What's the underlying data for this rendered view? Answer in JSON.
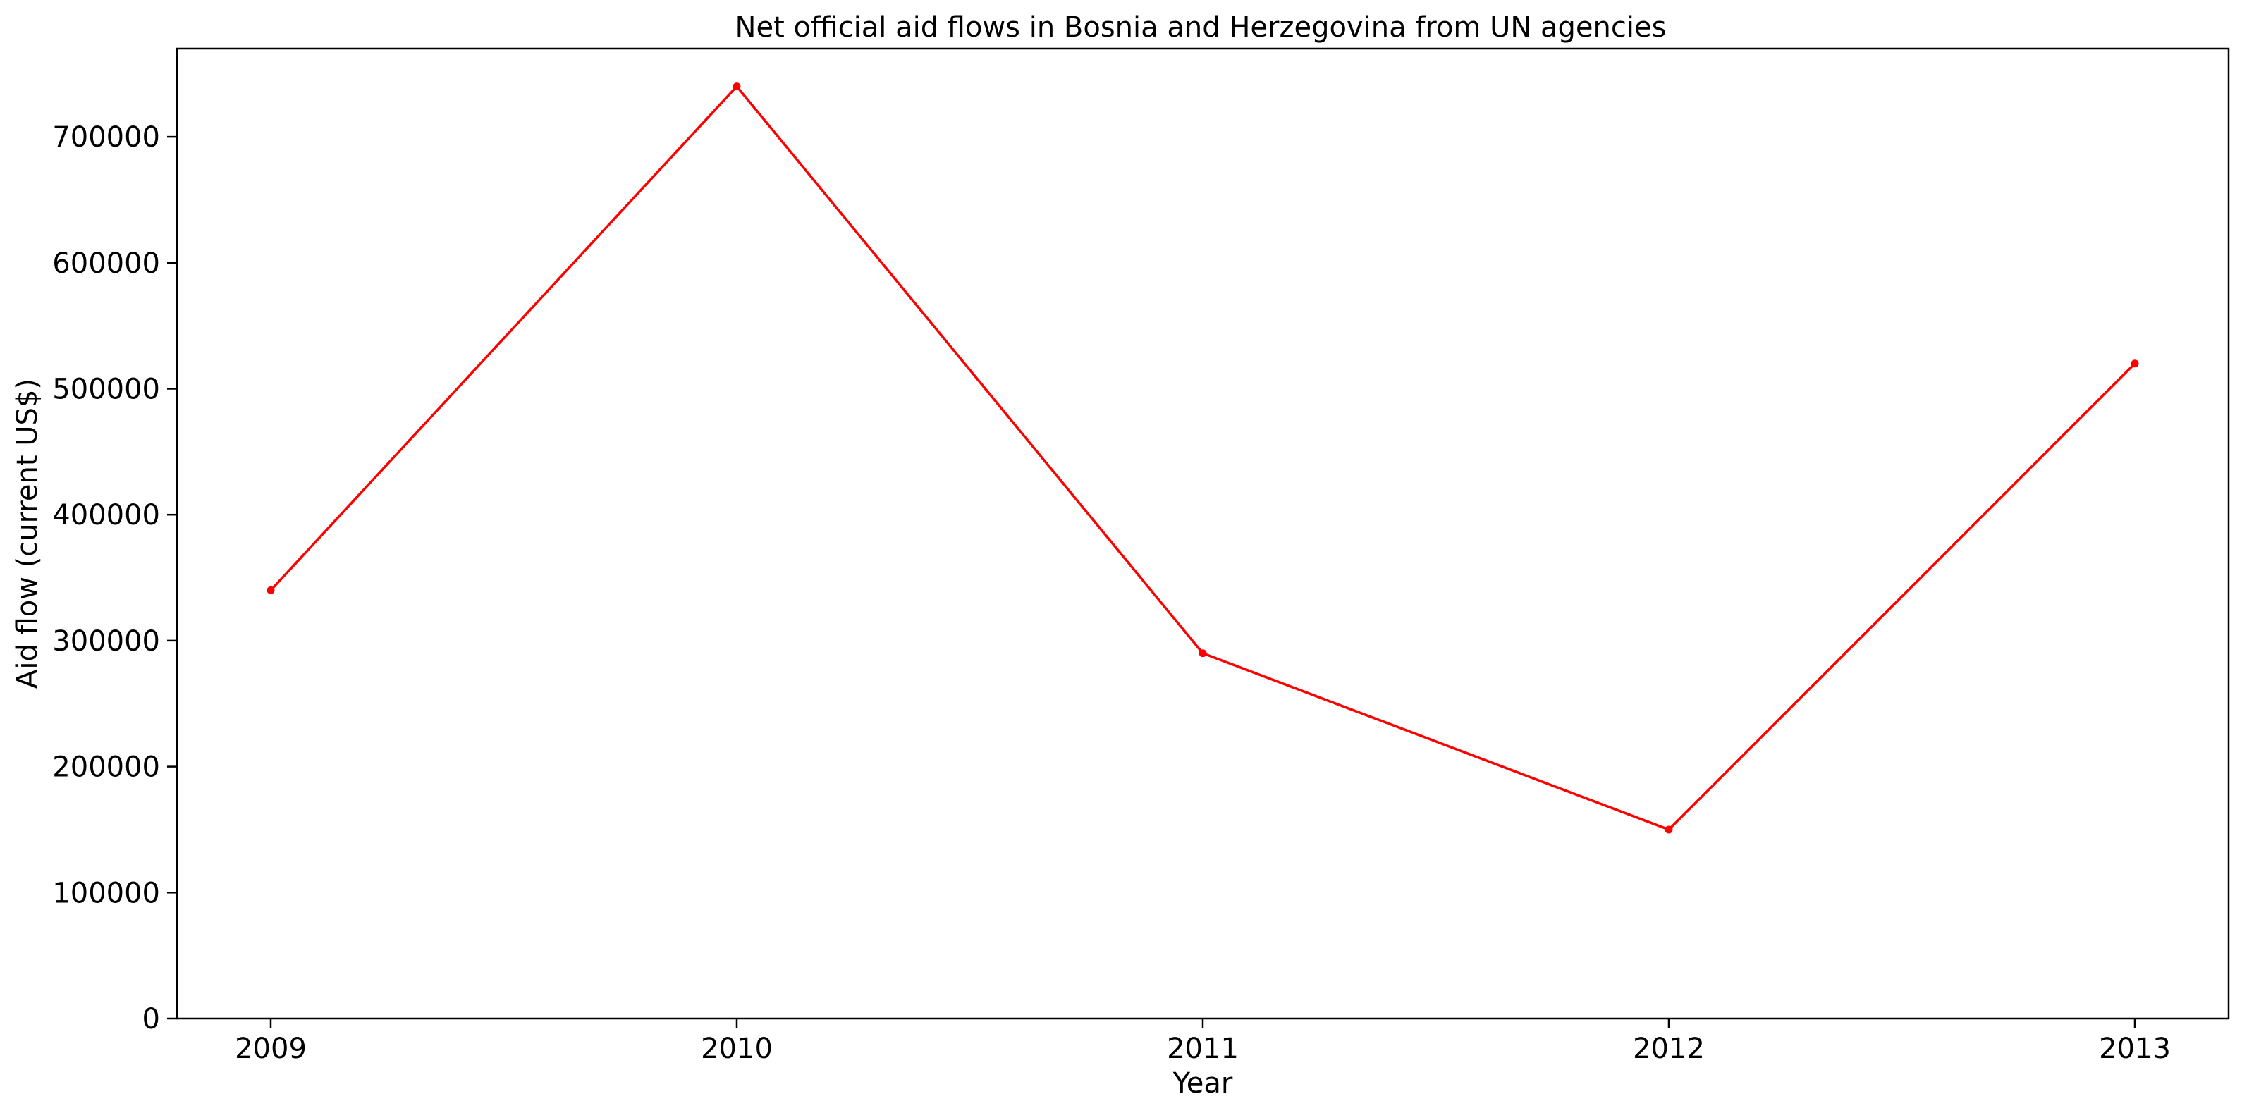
{
  "chart_data": {
    "type": "line",
    "title": "Net official aid flows in Bosnia and Herzegovina from UN agencies",
    "xlabel": "Year",
    "ylabel": "Aid flow (current US$)",
    "categories": [
      "2009",
      "2010",
      "2011",
      "2012",
      "2013"
    ],
    "series": [
      {
        "values": [
          340000,
          740000,
          290000,
          150000,
          520000
        ],
        "color": "#ff0000",
        "marker": "circle"
      }
    ],
    "ylim": [
      0,
      770000
    ],
    "yticks": [
      0,
      100000,
      200000,
      300000,
      400000,
      500000,
      600000,
      700000
    ],
    "ytick_labels": [
      "0",
      "100000",
      "200000",
      "300000",
      "400000",
      "500000",
      "600000",
      "700000"
    ],
    "grid": false,
    "legend": false
  }
}
